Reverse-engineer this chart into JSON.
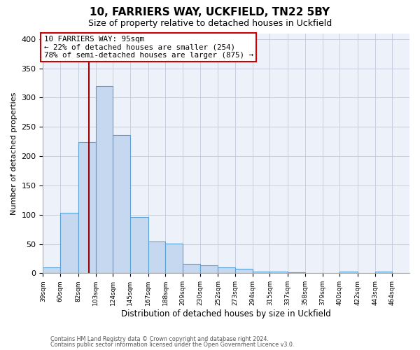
{
  "title1": "10, FARRIERS WAY, UCKFIELD, TN22 5BY",
  "title2": "Size of property relative to detached houses in Uckfield",
  "xlabel": "Distribution of detached houses by size in Uckfield",
  "ylabel": "Number of detached properties",
  "bin_labels": [
    "39sqm",
    "60sqm",
    "82sqm",
    "103sqm",
    "124sqm",
    "145sqm",
    "167sqm",
    "188sqm",
    "209sqm",
    "230sqm",
    "252sqm",
    "273sqm",
    "294sqm",
    "315sqm",
    "337sqm",
    "358sqm",
    "379sqm",
    "400sqm",
    "422sqm",
    "443sqm",
    "464sqm"
  ],
  "bin_edges": [
    39,
    60,
    82,
    103,
    124,
    145,
    167,
    188,
    209,
    230,
    252,
    273,
    294,
    315,
    337,
    358,
    379,
    400,
    422,
    443,
    464
  ],
  "bar_heights": [
    10,
    103,
    224,
    320,
    236,
    96,
    54,
    51,
    16,
    13,
    10,
    7,
    3,
    3,
    2,
    0,
    0,
    3,
    0,
    3,
    0
  ],
  "bar_color": "#c5d8f0",
  "bar_edgecolor": "#5a9fd4",
  "property_line_x": 95,
  "property_line_color": "#990000",
  "annotation_title": "10 FARRIERS WAY: 95sqm",
  "annotation_line1": "← 22% of detached houses are smaller (254)",
  "annotation_line2": "78% of semi-detached houses are larger (875) →",
  "annotation_box_facecolor": "#ffffff",
  "annotation_box_edgecolor": "#cc0000",
  "ylim": [
    0,
    410
  ],
  "yticks": [
    0,
    50,
    100,
    150,
    200,
    250,
    300,
    350,
    400
  ],
  "bg_color": "#edf2fa",
  "footer1": "Contains HM Land Registry data © Crown copyright and database right 2024.",
  "footer2": "Contains public sector information licensed under the Open Government Licence v3.0."
}
